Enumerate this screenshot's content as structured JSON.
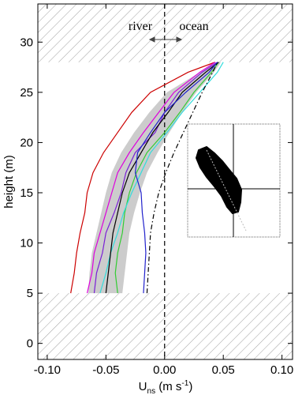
{
  "chart_data": {
    "type": "line",
    "y_label": "height (m)",
    "x_label_parts": [
      "U",
      "ns",
      " (m s",
      "-1",
      ")"
    ],
    "annotations": {
      "left": "river",
      "right": "ocean"
    },
    "heights": [
      5,
      7,
      9,
      11,
      13,
      15,
      17,
      19,
      21,
      23,
      25,
      27,
      28
    ],
    "series": [
      {
        "color": "#cc0000",
        "values": [
          -0.08,
          -0.077,
          -0.075,
          -0.072,
          -0.068,
          -0.066,
          -0.061,
          -0.052,
          -0.04,
          -0.028,
          -0.012,
          0.02,
          0.043
        ]
      },
      {
        "color": "#dd00dd",
        "values": [
          -0.066,
          -0.062,
          -0.06,
          -0.055,
          -0.05,
          -0.045,
          -0.04,
          -0.03,
          -0.018,
          -0.005,
          0.008,
          0.03,
          0.043
        ]
      },
      {
        "color": "#7a1fd6",
        "values": [
          -0.06,
          -0.058,
          -0.053,
          -0.05,
          -0.043,
          -0.037,
          -0.033,
          -0.025,
          -0.008,
          0.0,
          0.012,
          0.032,
          0.045
        ]
      },
      {
        "color": "#33cc33",
        "values": [
          -0.04,
          -0.042,
          -0.04,
          -0.036,
          -0.034,
          -0.03,
          -0.024,
          -0.015,
          0.0,
          0.013,
          0.025,
          0.04,
          0.046
        ]
      },
      {
        "color": "#33dddd",
        "values": [
          -0.055,
          -0.05,
          -0.046,
          -0.04,
          -0.035,
          -0.028,
          -0.02,
          -0.012,
          0.002,
          0.015,
          0.03,
          0.045,
          0.05
        ]
      },
      {
        "color": "#000000",
        "values": [
          -0.05,
          -0.048,
          -0.046,
          -0.044,
          -0.04,
          -0.036,
          -0.03,
          -0.02,
          -0.01,
          0.003,
          0.015,
          0.035,
          0.046
        ]
      },
      {
        "color": "#2222cc",
        "values": [
          -0.018,
          -0.017,
          -0.016,
          -0.017,
          -0.019,
          -0.02,
          -0.025,
          -0.023,
          -0.012,
          0.0,
          0.018,
          0.038,
          0.045
        ]
      },
      {
        "color": "#000000",
        "dash": "dashdot",
        "values": [
          -0.015,
          -0.014,
          -0.013,
          -0.012,
          -0.009,
          -0.005,
          0.001,
          0.008,
          0.016,
          0.024,
          0.032,
          0.041,
          0.045
        ]
      }
    ],
    "band": {
      "color": "#cccccc",
      "lower": [
        -0.065,
        -0.064,
        -0.062,
        -0.058,
        -0.054,
        -0.05,
        -0.045,
        -0.037,
        -0.026,
        -0.013,
        0.002,
        0.03,
        0.042
      ],
      "upper": [
        -0.036,
        -0.034,
        -0.032,
        -0.03,
        -0.026,
        -0.021,
        -0.015,
        -0.006,
        0.004,
        0.015,
        0.027,
        0.042,
        0.048
      ]
    },
    "vline": 0,
    "hatch_below": 5,
    "hatch_above": 28,
    "xlim": [
      -0.108,
      0.109
    ],
    "ylim": [
      -1.6,
      33.8
    ],
    "xticks": [
      {
        "value": -0.1,
        "label": "-0.10"
      },
      {
        "value": -0.05,
        "label": "-0.05"
      },
      {
        "value": 0,
        "label": "0.00"
      },
      {
        "value": 0.05,
        "label": "0.05"
      },
      {
        "value": 0.1,
        "label": "0.10"
      }
    ],
    "yticks": [
      0,
      5,
      10,
      15,
      20,
      25,
      30
    ]
  }
}
